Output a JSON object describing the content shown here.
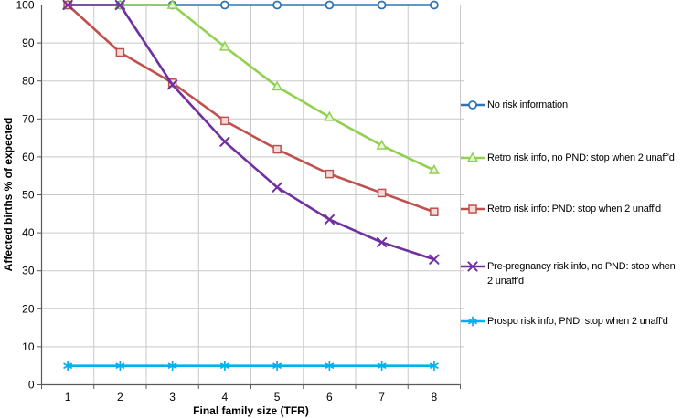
{
  "chart_data": {
    "type": "line",
    "title": "",
    "xlabel": "Final family size (TFR)",
    "ylabel": "Affected births % of expected",
    "x": [
      1,
      2,
      3,
      4,
      5,
      6,
      7,
      8
    ],
    "ylim": [
      0,
      100
    ],
    "ytick_step": 10,
    "grid": true,
    "legend_position": "right",
    "series": [
      {
        "name": "No risk information",
        "color": "#2E75B6",
        "marker": "circle",
        "values": [
          100,
          100,
          100,
          100,
          100,
          100,
          100,
          100
        ]
      },
      {
        "name": "Retro risk info, no PND: stop when 2 unaff'd",
        "color": "#92D050",
        "marker": "triangle",
        "values": [
          100,
          100,
          100,
          89,
          78.5,
          70.5,
          63,
          56.5
        ]
      },
      {
        "name": "Retro risk info: PND: stop when 2 unaff'd",
        "color": "#C0504D",
        "marker": "square",
        "values": [
          100,
          87.5,
          79.5,
          69.5,
          62,
          55.5,
          50.5,
          45.5
        ]
      },
      {
        "name": "Pre-pregnancy risk info, no PND: stop when 2 unaff'd",
        "color": "#7030A0",
        "marker": "x",
        "values": [
          100,
          100,
          79,
          64,
          52,
          43.5,
          37.5,
          33
        ]
      },
      {
        "name": "Prospo risk info, PND, stop when 2 unaff'd",
        "color": "#00B0F0",
        "marker": "asterisk",
        "values": [
          5,
          5,
          5,
          5,
          5,
          5,
          5,
          5
        ]
      }
    ],
    "style": {
      "grid_color": "#C9C9C9",
      "axis_color": "#595959",
      "background": "#FFFFFF",
      "marker_fills": {
        "circle": "#FFFFFF",
        "triangle": "#E9F5D8",
        "square": "#F2DCDB"
      }
    },
    "legend_tops": [
      107,
      165,
      221,
      284,
      344
    ]
  }
}
